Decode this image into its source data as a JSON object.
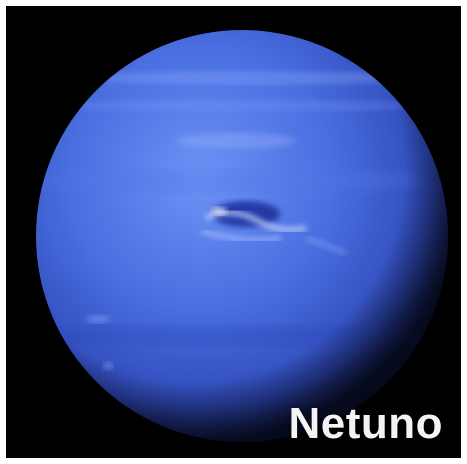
{
  "image": {
    "subject": "planet-neptune",
    "caption": "Netuno",
    "colors": {
      "background": "#000000",
      "border": "#ffffff",
      "planet_light": "#5f86f0",
      "planet_mid": "#3b5fd6",
      "planet_dark": "#1a2a80",
      "caption": "#f4f4f4"
    }
  }
}
